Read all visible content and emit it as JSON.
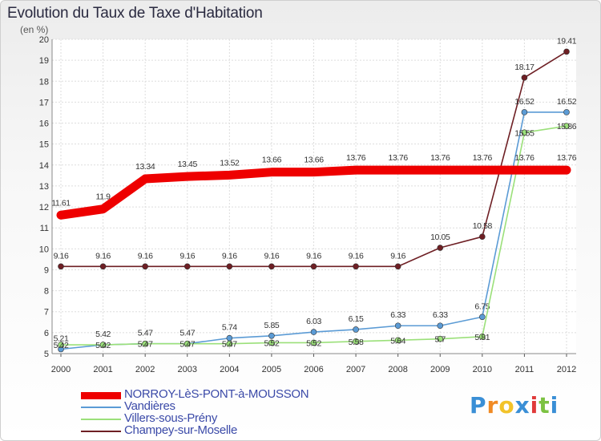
{
  "title": "Evolution du Taux de Taxe d'Habitation",
  "unit_label": "(en %)",
  "logo": {
    "letters": [
      "P",
      "r",
      "o",
      "x",
      "i",
      "t",
      "i"
    ],
    "colors": [
      "#3a8fd6",
      "#f08a24",
      "#f2c32a",
      "#3a8fd6",
      "#e03a3a",
      "#7cc242",
      "#3a8fd6"
    ]
  },
  "chart_data": {
    "type": "line",
    "title": "Evolution du Taux de Taxe d'Habitation",
    "xlabel": "",
    "ylabel": "(en %)",
    "ylim": [
      5,
      20
    ],
    "yticks": [
      "5",
      "6",
      "7",
      "8",
      "9",
      "10",
      "11",
      "12",
      "13",
      "14",
      "15",
      "16",
      "17",
      "18",
      "19",
      "20"
    ],
    "x": [
      "2000",
      "2001",
      "2002",
      "2003",
      "2004",
      "2005",
      "2006",
      "2007",
      "2008",
      "2009",
      "2010",
      "2011",
      "2012"
    ],
    "series": [
      {
        "name": "NORROY-LèS-PONT-à-MOUSSON",
        "color": "#ee0000",
        "values": [
          11.61,
          11.9,
          13.34,
          13.45,
          13.52,
          13.66,
          13.66,
          13.76,
          13.76,
          13.76,
          13.76,
          13.76,
          13.76
        ],
        "labels": [
          "11.61",
          "11.9",
          "13.34",
          "13.45",
          "13.52",
          "13.66",
          "13.66",
          "13.76",
          "13.76",
          "13.76",
          "13.76",
          "13.76",
          "13.76"
        ]
      },
      {
        "name": "Vandières",
        "color": "#5b9bd5",
        "values": [
          5.21,
          5.42,
          5.47,
          5.47,
          5.74,
          5.85,
          6.03,
          6.15,
          6.33,
          6.33,
          6.75,
          16.52,
          16.52
        ],
        "labels": [
          "5.21",
          "5.42",
          "5.47",
          "5.47",
          "5.74",
          "5.85",
          "6.03",
          "6.15",
          "6.33",
          "6.33",
          "6.75",
          "16.52",
          "16.52"
        ]
      },
      {
        "name": "Villers-sous-Prény",
        "color": "#9be07a",
        "values": [
          5.42,
          5.42,
          5.47,
          5.47,
          5.47,
          5.52,
          5.52,
          5.58,
          5.64,
          5.7,
          5.81,
          15.55,
          15.86
        ],
        "labels": [
          "5.42",
          "5.42",
          "5.47",
          "5.47",
          "5.47",
          "5.52",
          "5.52",
          "5.58",
          "5.64",
          "5.7",
          "5.81",
          "15.55",
          "15.86"
        ]
      },
      {
        "name": "Champey-sur-Moselle",
        "color": "#6e1f24",
        "values": [
          9.16,
          9.16,
          9.16,
          9.16,
          9.16,
          9.16,
          9.16,
          9.16,
          9.16,
          10.05,
          10.58,
          18.17,
          19.41
        ],
        "labels": [
          "9.16",
          "9.16",
          "9.16",
          "9.16",
          "9.16",
          "9.16",
          "9.16",
          "9.16",
          "9.16",
          "10.05",
          "10.58",
          "18.17",
          "19.41"
        ]
      }
    ],
    "legend_position": "bottom-left"
  }
}
